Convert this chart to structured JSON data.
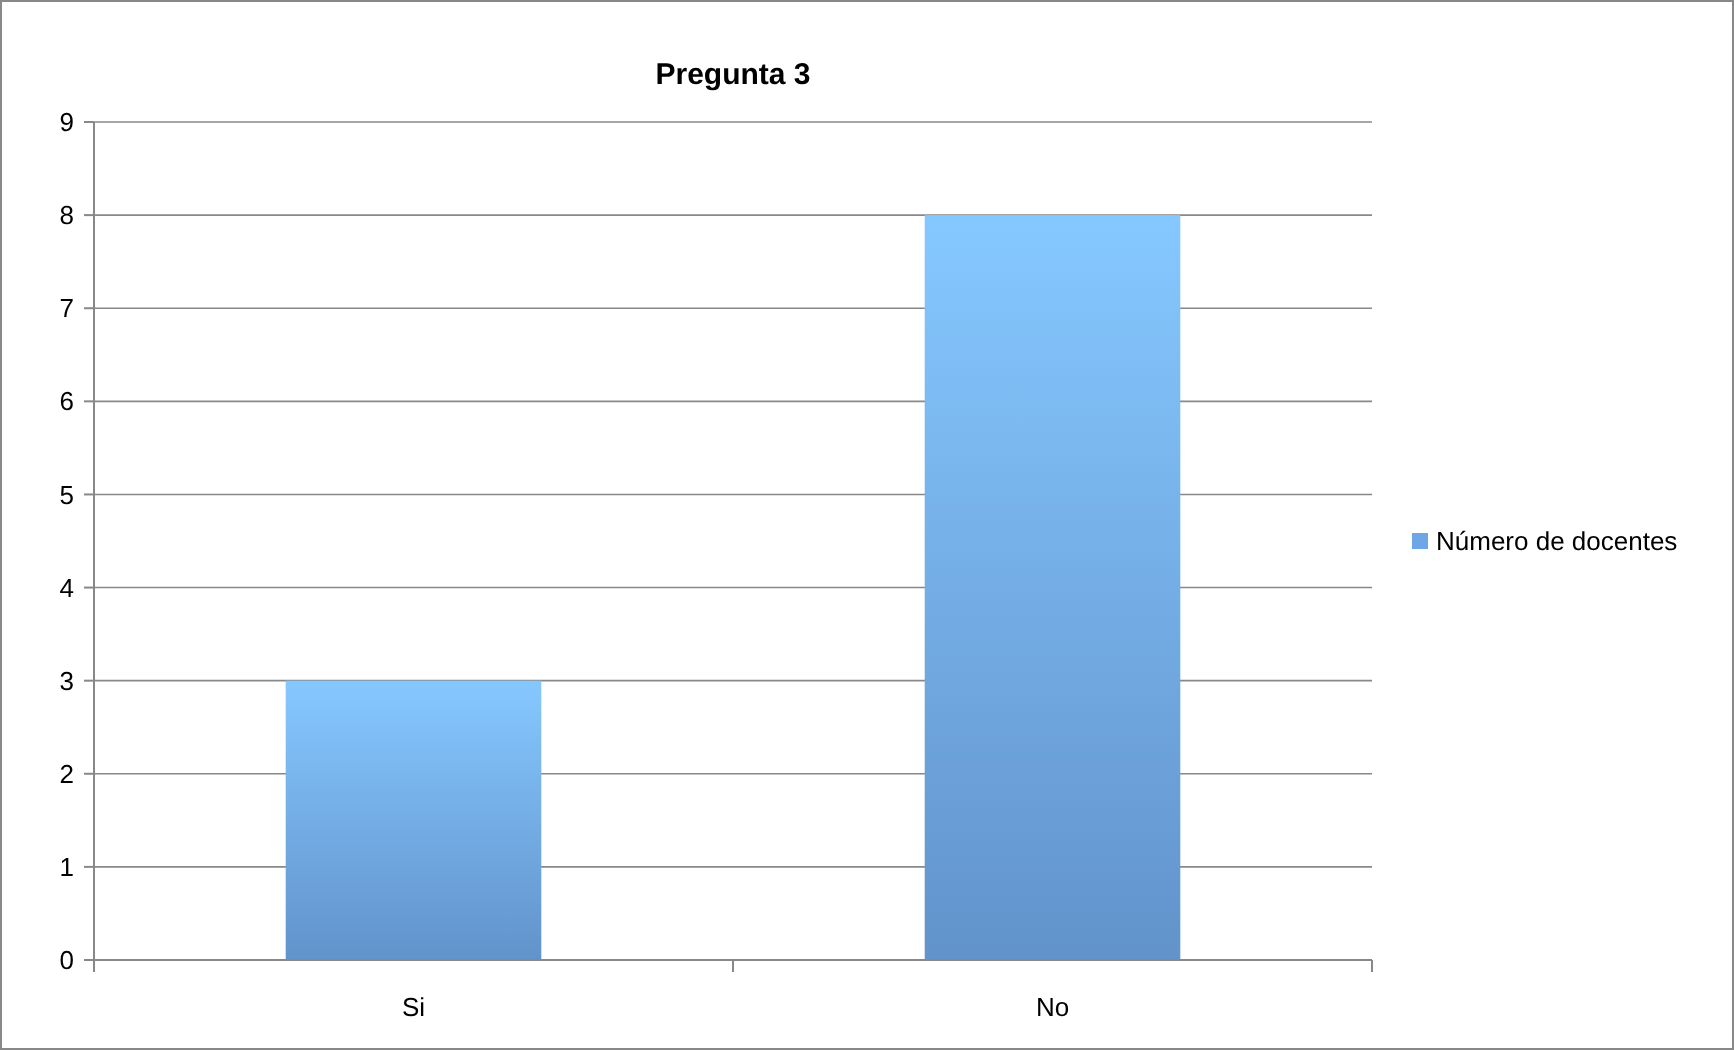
{
  "chart_data": {
    "type": "bar",
    "title": "Pregunta 3",
    "categories": [
      "Si",
      "No"
    ],
    "series": [
      {
        "name": "Número de docentes",
        "color": "#6fa7e6",
        "values": [
          3,
          8
        ]
      }
    ],
    "ylim": [
      0,
      9
    ],
    "yticks": [
      0,
      1,
      2,
      3,
      4,
      5,
      6,
      7,
      8,
      9
    ],
    "grid": "y",
    "legend": "right"
  }
}
